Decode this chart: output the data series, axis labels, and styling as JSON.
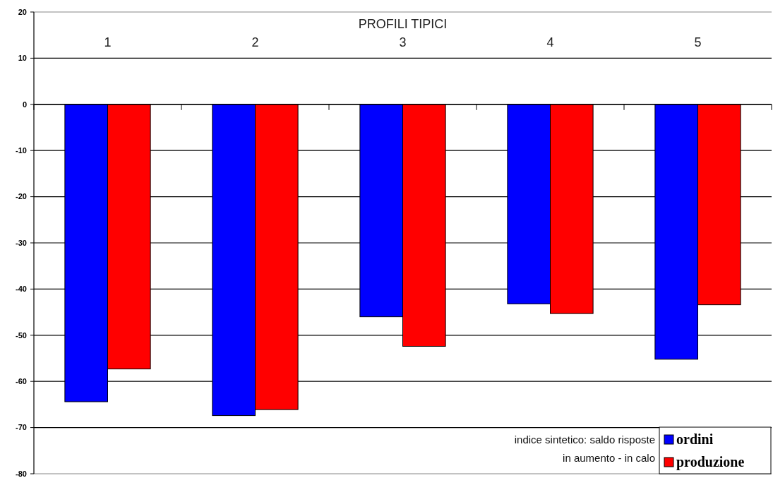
{
  "chart_data": {
    "type": "bar",
    "xlabel": "PROFILI TIPICI",
    "categories": [
      "1",
      "2",
      "3",
      "4",
      "5"
    ],
    "series": [
      {
        "name": "ordini",
        "color": "#0000ff",
        "values": [
          -64.4,
          -67.4,
          -46,
          -43.2,
          -55.2
        ]
      },
      {
        "name": "produzione",
        "color": "#ff0000",
        "values": [
          -57.3,
          -66.1,
          -52.4,
          -45.3,
          -43.4
        ]
      }
    ],
    "ylim": [
      -80,
      20
    ],
    "yticks": [
      -80,
      -70,
      -60,
      -50,
      -40,
      -30,
      -20,
      -10,
      0,
      10,
      20
    ],
    "grid": "y",
    "legend": "bottom right",
    "annotations": [
      "indice sintetico: saldo risposte",
      "in aumento -  in calo"
    ]
  }
}
